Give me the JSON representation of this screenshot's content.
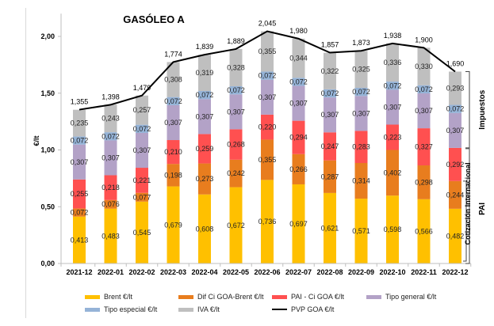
{
  "chart_data": {
    "type": "bar",
    "stacked": true,
    "title": "GASÓLEO A",
    "xlabel": "",
    "ylabel": "€/lt",
    "ylim": [
      0,
      2.2
    ],
    "yticks": [
      "0,00",
      "0,50",
      "1,00",
      "1,50",
      "2,00"
    ],
    "ytick_values": [
      0,
      0.5,
      1.0,
      1.5,
      2.0
    ],
    "categories": [
      "2021-12",
      "2022-01",
      "2022-02",
      "2022-03",
      "2022-04",
      "2022-05",
      "2022-06",
      "2022-07",
      "2022-08",
      "2022-09",
      "2022-10",
      "2022-11",
      "2022-12"
    ],
    "series": [
      {
        "name": "Brent €/lt",
        "color": "#FFC000",
        "values": [
          0.413,
          0.483,
          0.545,
          0.679,
          0.608,
          0.672,
          0.736,
          0.697,
          0.621,
          0.571,
          0.598,
          0.566,
          0.482
        ],
        "labels": [
          "0,413",
          "0,483",
          "0,545",
          "0,679",
          "0,608",
          "0,672",
          "0,736",
          "0,697",
          "0,621",
          "0,571",
          "0,598",
          "0,566",
          "0,482"
        ]
      },
      {
        "name": "Dif Ci GOA-Brent €/lt",
        "color": "#E87D1E",
        "values": [
          0.072,
          0.076,
          0.077,
          0.198,
          0.273,
          0.242,
          0.355,
          0.266,
          0.287,
          0.314,
          0.402,
          0.298,
          0.244
        ],
        "labels": [
          "0,072",
          "0,076",
          "0,077",
          "0,198",
          "0,273",
          "0,242",
          "0,355",
          "0,266",
          "0,287",
          "0,314",
          "0,402",
          "0,298",
          "0,244"
        ]
      },
      {
        "name": "PAI - Ci GOA €/lt",
        "color": "#FF5050",
        "values": [
          0.255,
          0.218,
          0.221,
          0.21,
          0.259,
          0.268,
          0.22,
          0.294,
          0.247,
          0.283,
          0.223,
          0.327,
          0.292
        ],
        "labels": [
          "0,255",
          "0,218",
          "0,221",
          "0,210",
          "0,259",
          "0,268",
          "0,220",
          "0,294",
          "0,247",
          "0,283",
          "0,223",
          "0,327",
          "0,292"
        ]
      },
      {
        "name": "Tipo general €/lt",
        "color": "#B3A2C7",
        "values": [
          0.307,
          0.307,
          0.307,
          0.307,
          0.307,
          0.307,
          0.307,
          0.307,
          0.307,
          0.307,
          0.307,
          0.307,
          0.307
        ],
        "labels": [
          "0,307",
          "0,307",
          "0,307",
          "0,307",
          "0,307",
          "0,307",
          "0,307",
          "0,307",
          "0,307",
          "0,307",
          "0,307",
          "0,307",
          "0,307"
        ]
      },
      {
        "name": "Tipo especial €/lt",
        "color": "#95B3D7",
        "values": [
          0.072,
          0.072,
          0.072,
          0.072,
          0.072,
          0.072,
          0.072,
          0.072,
          0.072,
          0.072,
          0.072,
          0.072,
          0.072
        ],
        "labels": [
          "0,072",
          "0,072",
          "0,072",
          "0,072",
          "0,072",
          "0,072",
          "0,072",
          "0,072",
          "0,072",
          "0,072",
          "0,072",
          "0,072",
          "0,072"
        ]
      },
      {
        "name": "IVA €/lt",
        "color": "#BFBFBF",
        "values": [
          0.235,
          0.243,
          0.257,
          0.308,
          0.319,
          0.328,
          0.355,
          0.344,
          0.322,
          0.325,
          0.336,
          0.33,
          0.293
        ],
        "labels": [
          "0,235",
          "0,243",
          "0,257",
          "0,308",
          "0,319",
          "0,328",
          "0,355",
          "0,344",
          "0,322",
          "0,325",
          "0,336",
          "0,330",
          "0,293"
        ]
      }
    ],
    "line_series": {
      "name": "PVP GOA €/lt",
      "color": "#000000",
      "values": [
        1.355,
        1.398,
        1.479,
        1.774,
        1.839,
        1.889,
        2.045,
        1.98,
        1.857,
        1.873,
        1.938,
        1.9,
        1.69
      ],
      "labels": [
        "1,355",
        "1,398",
        "1,479",
        "1,774",
        "1,839",
        "1,889",
        "2,045",
        "1,980",
        "1,857",
        "1,873",
        "1,938",
        "1,900",
        "1,690"
      ]
    },
    "annotations": {
      "brackets": [
        {
          "label": "Impuestos",
          "from_series": "Tipo general €/lt",
          "to_series": "IVA €/lt"
        },
        {
          "label": "PAI",
          "from_series": "Brent €/lt",
          "to_series": "PAI - Ci GOA €/lt"
        },
        {
          "label": "Cotización Internacional",
          "from_series": "Brent €/lt",
          "to_series": "Dif Ci GOA-Brent €/lt"
        }
      ]
    },
    "legend": {
      "position": "bottom",
      "items": [
        "Brent €/lt",
        "Dif Ci GOA-Brent €/lt",
        "PAI - Ci GOA €/lt",
        "Tipo general €/lt",
        "Tipo especial €/lt",
        "IVA €/lt",
        "PVP GOA €/lt"
      ]
    },
    "grid": false
  }
}
